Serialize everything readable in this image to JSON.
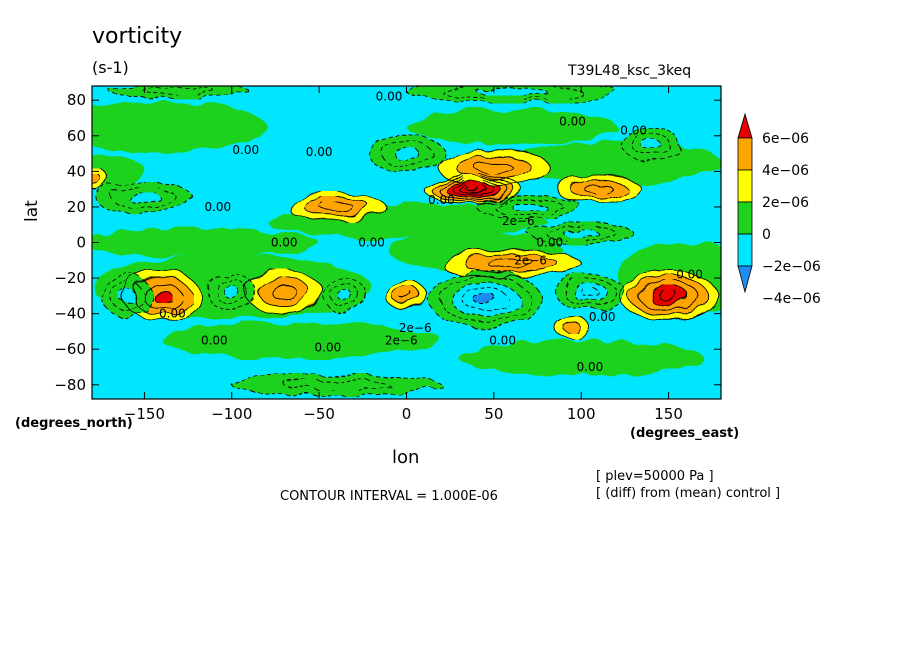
{
  "chart_data": {
    "type": "heatmap",
    "title": "vorticity",
    "units": "(s-1)",
    "run_label": "T39L48_ksc_3keq",
    "xlabel": "lon",
    "ylabel": "lat",
    "x_units_label": "(degrees_east)",
    "y_units_label": "(degrees_north)",
    "xlim": [
      -180,
      180
    ],
    "ylim": [
      -88,
      88
    ],
    "x_ticks": [
      -150,
      -100,
      -50,
      0,
      50,
      100,
      150
    ],
    "x_tick_labels": [
      "−150",
      "−100",
      "−50",
      "0",
      "50",
      "100",
      "150"
    ],
    "y_ticks": [
      80,
      60,
      40,
      20,
      0,
      -20,
      -40,
      -60,
      -80
    ],
    "y_tick_labels": [
      "80",
      "60",
      "40",
      "20",
      "0",
      "−20",
      "−40",
      "−60",
      "−80"
    ],
    "contour_interval_text": "CONTOUR INTERVAL = 1.000E-06",
    "level_text": "[ plev=50000 Pa ]",
    "diff_text": "[ (diff) from (mean) control ]",
    "colorbar": {
      "levels": [
        -4e-06,
        -2e-06,
        0,
        2e-06,
        4e-06,
        6e-06
      ],
      "labels": [
        "−4e−06",
        "−2e−06",
        "0",
        "2e−06",
        "4e−06",
        "6e−06"
      ],
      "colors": [
        "#1e8cf0",
        "#00e6ff",
        "#1ed21e",
        "#ffff00",
        "#ffa500",
        "#e60000"
      ],
      "extend": "both"
    },
    "background_color": "#00e6ff",
    "features": [
      {
        "lon": 38,
        "lat": 30,
        "value": 6.5e-06,
        "rx": 28,
        "ry": 8
      },
      {
        "lon": 150,
        "lat": -30,
        "value": 4.5e-06,
        "rx": 28,
        "ry": 14
      },
      {
        "lon": -140,
        "lat": -30,
        "value": 3.5e-06,
        "rx": 22,
        "ry": 14
      },
      {
        "lon": -70,
        "lat": -28,
        "value": 3e-06,
        "rx": 22,
        "ry": 12
      },
      {
        "lon": -40,
        "lat": 20,
        "value": 3e-06,
        "rx": 28,
        "ry": 8
      },
      {
        "lon": 50,
        "lat": 42,
        "value": 3e-06,
        "rx": 32,
        "ry": 10
      },
      {
        "lon": 110,
        "lat": 30,
        "value": 2.5e-06,
        "rx": 24,
        "ry": 8
      },
      {
        "lon": 60,
        "lat": -12,
        "value": 2.5e-06,
        "rx": 40,
        "ry": 8
      },
      {
        "lon": 0,
        "lat": -30,
        "value": 2.5e-06,
        "rx": 12,
        "ry": 8
      },
      {
        "lon": -178,
        "lat": 35,
        "value": 2e-06,
        "rx": 8,
        "ry": 6
      },
      {
        "lon": 95,
        "lat": -48,
        "value": 2e-06,
        "rx": 10,
        "ry": 6
      },
      {
        "lon": 45,
        "lat": -32,
        "value": -5e-06,
        "rx": 32,
        "ry": 16
      },
      {
        "lon": 105,
        "lat": -28,
        "value": -3.5e-06,
        "rx": 20,
        "ry": 10
      },
      {
        "lon": -160,
        "lat": -30,
        "value": -3e-06,
        "rx": 14,
        "ry": 12
      },
      {
        "lon": -100,
        "lat": -28,
        "value": -3e-06,
        "rx": 14,
        "ry": 10
      },
      {
        "lon": -35,
        "lat": -30,
        "value": -3e-06,
        "rx": 12,
        "ry": 10
      },
      {
        "lon": -150,
        "lat": 25,
        "value": -3e-06,
        "rx": 28,
        "ry": 8
      },
      {
        "lon": 0,
        "lat": 50,
        "value": -3e-06,
        "rx": 22,
        "ry": 10
      },
      {
        "lon": 140,
        "lat": 55,
        "value": -3e-06,
        "rx": 16,
        "ry": 10
      },
      {
        "lon": 70,
        "lat": 20,
        "value": -2.5e-06,
        "rx": 30,
        "ry": 6
      },
      {
        "lon": 60,
        "lat": 85,
        "value": -2.5e-06,
        "rx": 60,
        "ry": 6
      },
      {
        "lon": 100,
        "lat": 5,
        "value": -2.5e-06,
        "rx": 30,
        "ry": 6
      },
      {
        "lon": -40,
        "lat": -80,
        "value": -2e-06,
        "rx": 60,
        "ry": 6
      },
      {
        "lon": -130,
        "lat": 85,
        "value": -2e-06,
        "rx": 40,
        "ry": 4
      }
    ],
    "green_band_regions": [
      {
        "lon": -140,
        "lat": 65,
        "rx": 60,
        "ry": 14
      },
      {
        "lon": -120,
        "lat": 0,
        "rx": 70,
        "ry": 8
      },
      {
        "lon": 0,
        "lat": 12,
        "rx": 80,
        "ry": 10
      },
      {
        "lon": -100,
        "lat": -25,
        "rx": 80,
        "ry": 18
      },
      {
        "lon": 160,
        "lat": -20,
        "rx": 40,
        "ry": 20
      },
      {
        "lon": 120,
        "lat": 45,
        "rx": 60,
        "ry": 12
      },
      {
        "lon": -60,
        "lat": -55,
        "rx": 80,
        "ry": 10
      },
      {
        "lon": 100,
        "lat": -65,
        "rx": 70,
        "ry": 10
      },
      {
        "lon": 60,
        "lat": 65,
        "rx": 60,
        "ry": 10
      },
      {
        "lon": -170,
        "lat": 40,
        "rx": 20,
        "ry": 10
      },
      {
        "lon": 40,
        "lat": -5,
        "rx": 50,
        "ry": 10
      }
    ],
    "annotations": [
      {
        "text": "0.00",
        "lon": -10,
        "lat": 82
      },
      {
        "text": "0.00",
        "lon": 95,
        "lat": 68
      },
      {
        "text": "0.00",
        "lon": 130,
        "lat": 63
      },
      {
        "text": "0.00",
        "lon": -92,
        "lat": 52
      },
      {
        "text": "0.00",
        "lon": -50,
        "lat": 51
      },
      {
        "text": "0.00",
        "lon": -108,
        "lat": 20
      },
      {
        "text": "0.00",
        "lon": 20,
        "lat": 24
      },
      {
        "text": "2e−6",
        "lon": 64,
        "lat": 12
      },
      {
        "text": "0.00",
        "lon": -70,
        "lat": 0
      },
      {
        "text": "0.00",
        "lon": -20,
        "lat": 0
      },
      {
        "text": "0.00",
        "lon": 82,
        "lat": 0
      },
      {
        "text": "2e−6",
        "lon": 71,
        "lat": -10
      },
      {
        "text": "0.00",
        "lon": 162,
        "lat": -18
      },
      {
        "text": "0.00",
        "lon": -134,
        "lat": -40
      },
      {
        "text": "0.00",
        "lon": 112,
        "lat": -42
      },
      {
        "text": "2e−6",
        "lon": 5,
        "lat": -48
      },
      {
        "text": "0.00",
        "lon": -110,
        "lat": -55
      },
      {
        "text": "2e−6",
        "lon": -3,
        "lat": -55
      },
      {
        "text": "0.00",
        "lon": 55,
        "lat": -55
      },
      {
        "text": "0.00",
        "lon": -45,
        "lat": -59
      },
      {
        "text": "0.00",
        "lon": 105,
        "lat": -70
      }
    ]
  }
}
